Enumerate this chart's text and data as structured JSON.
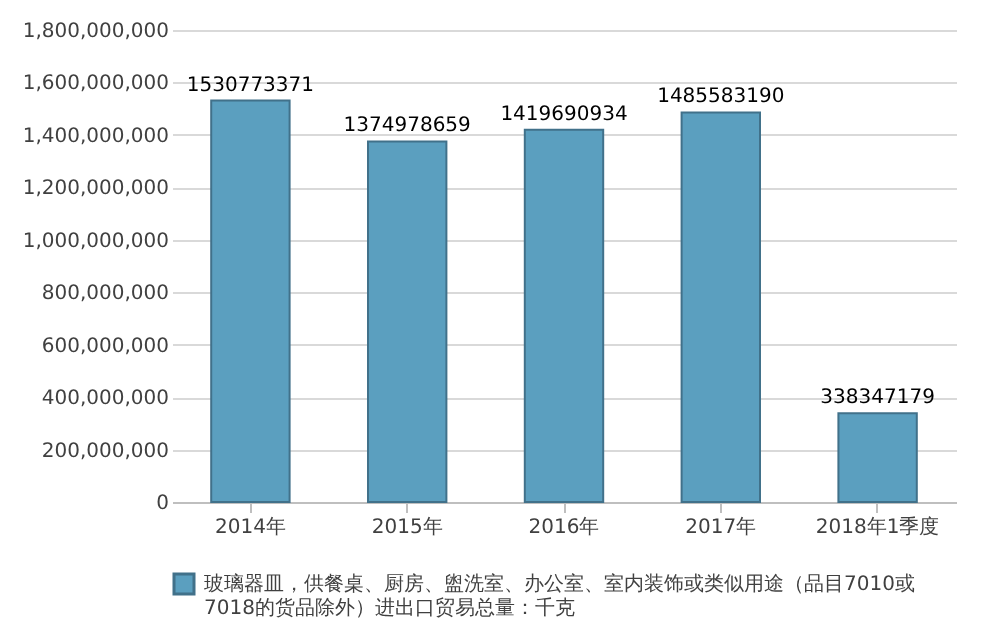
{
  "chart_data": {
    "type": "bar",
    "categories": [
      "2014年",
      "2015年",
      "2016年",
      "2017年",
      "2018年1季度"
    ],
    "series": [
      {
        "name": "玻璃器皿，供餐桌、厨房、盥洗室、办公室、室内装饰或类似用途（品目7010或7018的货品除外）进出口贸易总量：千克",
        "color": "#5b9fbf",
        "values": [
          1530773371,
          1374978659,
          1419690934,
          1485583190,
          338347179
        ]
      }
    ],
    "ylim": [
      0,
      1800000000
    ],
    "yticks": [
      0,
      {
        "value": 200000000,
        "label": "200,000,000"
      },
      {
        "value": 400000000,
        "label": "400,000,000"
      },
      {
        "value": 600000000,
        "label": "600,000,000"
      },
      {
        "value": 800000000,
        "label": "800,000,000"
      },
      {
        "value": 1000000000,
        "label": "1,000,000,000"
      },
      {
        "value": 1200000000,
        "label": "1,200,000,000"
      },
      {
        "value": 1400000000,
        "label": "1,400,000,000"
      },
      {
        "value": 1600000000,
        "label": "1,600,000,000"
      },
      {
        "value": 1800000000,
        "label": "1,800,000,000"
      }
    ],
    "grid": "y",
    "legend": "bottom",
    "data_labels": true
  }
}
